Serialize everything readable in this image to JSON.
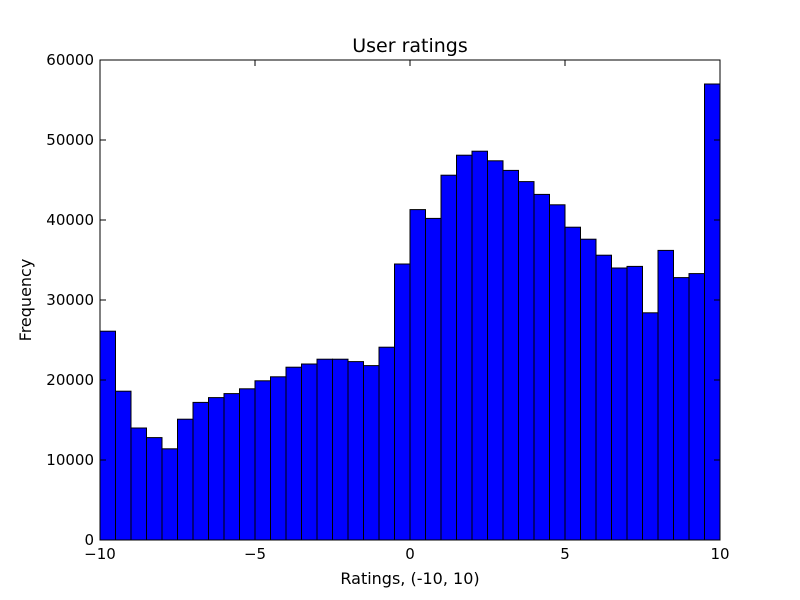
{
  "chart_data": {
    "type": "bar",
    "title": "User ratings",
    "xlabel": "Ratings, (-10, 10)",
    "ylabel": "Frequency",
    "xlim": [
      -10,
      10
    ],
    "ylim": [
      0,
      60000
    ],
    "grid": false,
    "bar_color": "#0000ff",
    "edge_color": "#000000",
    "bin_edges": [
      -10,
      -9.5,
      -9,
      -8.5,
      -8,
      -7.5,
      -7,
      -6.5,
      -6,
      -5.5,
      -5,
      -4.5,
      -4,
      -3.5,
      -3,
      -2.5,
      -2,
      -1.5,
      -1,
      -0.5,
      0,
      0.5,
      1,
      1.5,
      2,
      2.5,
      3,
      3.5,
      4,
      4.5,
      5,
      5.5,
      6,
      6.5,
      7,
      7.5,
      8,
      8.5,
      9,
      9.5,
      10
    ],
    "values": [
      26100,
      18600,
      14000,
      12800,
      11400,
      15100,
      17200,
      17800,
      18300,
      18900,
      19900,
      20400,
      21600,
      22000,
      22600,
      22600,
      22300,
      21800,
      24100,
      34500,
      41300,
      40200,
      45600,
      48100,
      48600,
      47400,
      46200,
      44800,
      43200,
      41900,
      39100,
      37600,
      35600,
      34000,
      34200,
      28400,
      36200,
      32800,
      33300,
      57000
    ],
    "x_ticks": [
      -10,
      -5,
      0,
      5,
      10
    ],
    "x_tick_labels": [
      "−10",
      "−5",
      "0",
      "5",
      "10"
    ],
    "y_ticks": [
      0,
      10000,
      20000,
      30000,
      40000,
      50000,
      60000
    ],
    "y_tick_labels": [
      "0",
      "10000",
      "20000",
      "30000",
      "40000",
      "50000",
      "60000"
    ]
  }
}
